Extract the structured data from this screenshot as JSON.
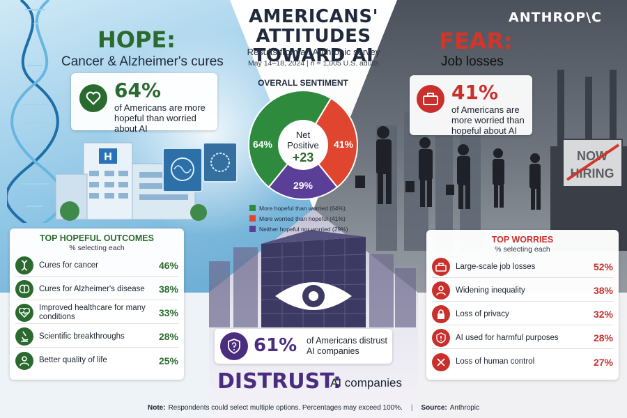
{
  "header": {
    "title_line1": "AMERICANS' ATTITUDES",
    "title_line2": "TOWARD AI",
    "subtitle": "Results from an Anthropic survey",
    "meta": "May 14–18, 2024  |  n = 1,005 U.S. adults",
    "logo": "ANTHROP\\C"
  },
  "hope": {
    "word": "HOPE:",
    "subtitle": "Cancer & Alzheimer's cures",
    "stat_value": "64%",
    "stat_text": "of Americans are more hopeful than worried about AI",
    "icon": "heart-icon"
  },
  "fear": {
    "word": "FEAR:",
    "subtitle": "Job losses",
    "stat_value": "41%",
    "stat_text": "of Americans are more worried than hopeful about AI",
    "icon": "briefcase-icon",
    "sign_line1": "NOW",
    "sign_line2": "HIRING"
  },
  "sentiment": {
    "title": "OVERALL SENTIMENT",
    "center_line1": "Net",
    "center_line2": "Positive",
    "center_value": "+23",
    "slices": [
      {
        "label": "64%",
        "value": 64,
        "color": "#2e8b3e",
        "legend": "More hopeful than worried (64%)"
      },
      {
        "label": "41%",
        "value": 41,
        "color": "#e0452f",
        "legend": "More worried than hopeful (41%)"
      },
      {
        "label": "29%",
        "value": 29,
        "color": "#5b3e98",
        "legend": "Neither hopeful nor worried (29%)"
      }
    ]
  },
  "hopeful_outcomes": {
    "title": "TOP HOPEFUL OUTCOMES",
    "subtitle": "% selecting each",
    "color": "#2b6a2f",
    "items": [
      {
        "label": "Cures for cancer",
        "pct": "46%",
        "icon": "dna-icon"
      },
      {
        "label": "Cures for Alzheimer's disease",
        "pct": "38%",
        "icon": "brain-icon"
      },
      {
        "label": "Improved healthcare for many conditions",
        "pct": "33%",
        "icon": "heartbeat-icon"
      },
      {
        "label": "Scientific breakthroughs",
        "pct": "28%",
        "icon": "microscope-icon"
      },
      {
        "label": "Better quality of life",
        "pct": "25%",
        "icon": "person-icon"
      }
    ]
  },
  "worries": {
    "title": "TOP WORRIES",
    "subtitle": "% selecting each",
    "color": "#c9302c",
    "items": [
      {
        "label": "Large-scale job losses",
        "pct": "52%",
        "icon": "briefcase-icon"
      },
      {
        "label": "Widening inequality",
        "pct": "38%",
        "icon": "person-icon"
      },
      {
        "label": "Loss of privacy",
        "pct": "32%",
        "icon": "lock-icon"
      },
      {
        "label": "AI used for harmful purposes",
        "pct": "28%",
        "icon": "warning-icon"
      },
      {
        "label": "Loss of human control",
        "pct": "27%",
        "icon": "x-icon"
      }
    ]
  },
  "distrust": {
    "stat_value": "61%",
    "stat_text": "of Americans distrust AI companies",
    "word": "DISTRUST:",
    "subtitle": "AI companies",
    "icon": "shield-question-icon"
  },
  "footer": {
    "note_label": "Note:",
    "note_text": "Respondents could select multiple options. Percentages may exceed 100%.",
    "separator": "|",
    "source_label": "Source:",
    "source_text": "Anthropic"
  }
}
